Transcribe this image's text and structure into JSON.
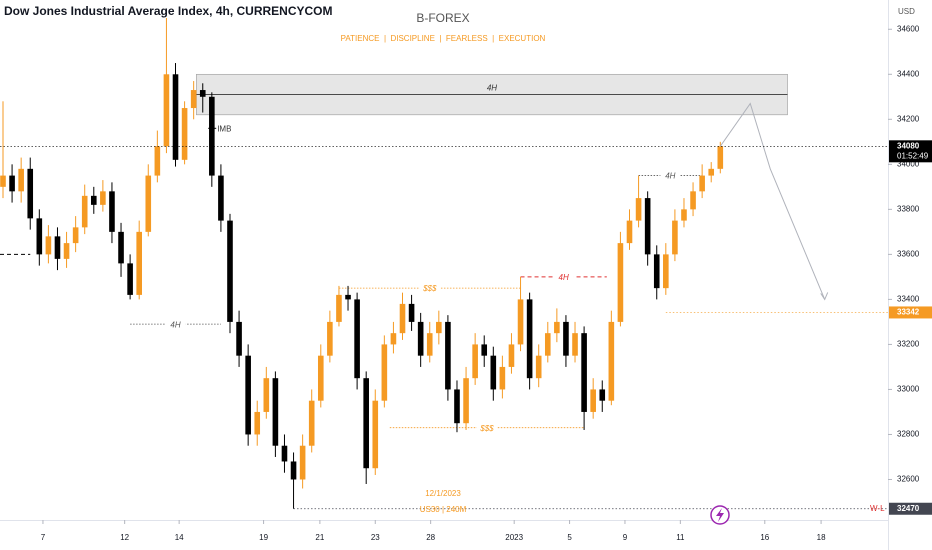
{
  "chart_data": {
    "type": "candlestick",
    "title": "Dow Jones Industrial Average Index, 4h, CURRENCYCOM",
    "brand": "B-FOREX",
    "motto": "PATIENCE  |  DISCIPLINE  |  FEARLESS  |  EXECUTION",
    "currency": "USD",
    "up_color": "#f59a23",
    "down_color": "#000000",
    "xlim": [
      -0.33,
      97.47
    ],
    "ylim": [
      32420,
      34730
    ],
    "xticks": [
      {
        "value": 4.4,
        "label": "7"
      },
      {
        "value": 13.4,
        "label": "12"
      },
      {
        "value": 19.4,
        "label": "14"
      },
      {
        "value": 28.7,
        "label": "19"
      },
      {
        "value": 34.9,
        "label": "21"
      },
      {
        "value": 41,
        "label": "23"
      },
      {
        "value": 47.1,
        "label": "28"
      },
      {
        "value": 56.3,
        "label": "2023"
      },
      {
        "value": 62.4,
        "label": "5"
      },
      {
        "value": 68.5,
        "label": "9"
      },
      {
        "value": 74.6,
        "label": "11"
      },
      {
        "value": 83.9,
        "label": "16"
      },
      {
        "value": 90.1,
        "label": "18"
      }
    ],
    "yticks": [
      34600,
      34400,
      34200,
      34000,
      33800,
      33600,
      33400,
      33200,
      33000,
      32800,
      32600
    ],
    "open": [
      33900,
      33950,
      33880,
      33980,
      33760,
      33600,
      33680,
      33580,
      33650,
      33720,
      33860,
      33820,
      33880,
      33700,
      33560,
      33420,
      33700,
      33950,
      34080,
      34400,
      34020,
      34250,
      34330,
      34300,
      33950,
      33750,
      33300,
      33150,
      32800,
      32900,
      33050,
      32750,
      32680,
      32600,
      32750,
      32950,
      33150,
      33300,
      33420,
      33400,
      33050,
      32650,
      32950,
      33200,
      33250,
      33380,
      33300,
      33150,
      33250,
      33300,
      33000,
      32850,
      33050,
      33200,
      33150,
      33000,
      33100,
      33200,
      33400,
      33050,
      33150,
      33250,
      33300,
      33150,
      33250,
      32900,
      33000,
      32950,
      33300,
      33650,
      33750,
      33850,
      33600,
      33450,
      33600,
      33750,
      33800,
      33880,
      33950,
      33980
    ],
    "high": [
      34280,
      34000,
      34030,
      34030,
      33800,
      33730,
      33720,
      33700,
      33770,
      33910,
      33900,
      33930,
      33920,
      33740,
      33600,
      33750,
      34000,
      34150,
      34650,
      34450,
      34280,
      34370,
      34360,
      34320,
      34000,
      33780,
      33350,
      33200,
      32950,
      33100,
      33080,
      32800,
      32720,
      32800,
      33000,
      33200,
      33350,
      33460,
      33460,
      33430,
      33080,
      33000,
      33240,
      33300,
      33430,
      33420,
      33340,
      33300,
      33350,
      33330,
      33040,
      33100,
      33250,
      33240,
      33190,
      33150,
      33250,
      33500,
      33430,
      33200,
      33300,
      33360,
      33330,
      33300,
      33280,
      33050,
      33040,
      33350,
      33700,
      33800,
      33950,
      33880,
      33640,
      33650,
      33800,
      33850,
      33920,
      34000,
      34010,
      34100
    ],
    "low": [
      33850,
      33830,
      33830,
      33710,
      33550,
      33560,
      33530,
      33540,
      33610,
      33690,
      33780,
      33790,
      33650,
      33500,
      33400,
      33400,
      33680,
      33920,
      34050,
      33990,
      34000,
      34200,
      34230,
      33900,
      33700,
      33250,
      33100,
      32750,
      32750,
      32870,
      32700,
      32630,
      32470,
      32560,
      32720,
      32920,
      33120,
      33280,
      33350,
      33000,
      32580,
      32620,
      32920,
      33160,
      33220,
      33260,
      33100,
      33120,
      33200,
      32950,
      32810,
      32820,
      33020,
      33100,
      32950,
      32960,
      33070,
      33170,
      33000,
      33010,
      33120,
      33210,
      33100,
      33120,
      32820,
      32870,
      32900,
      32930,
      33280,
      33620,
      33720,
      33550,
      33400,
      33420,
      33570,
      33720,
      33770,
      33850,
      33920,
      33960
    ],
    "close": [
      33950,
      33880,
      33980,
      33760,
      33600,
      33680,
      33580,
      33650,
      33720,
      33860,
      33820,
      33880,
      33700,
      33560,
      33420,
      33700,
      33950,
      34080,
      34400,
      34020,
      34250,
      34330,
      34300,
      33950,
      33750,
      33300,
      33150,
      32800,
      32900,
      33050,
      32750,
      32680,
      32600,
      32750,
      32950,
      33150,
      33300,
      33420,
      33400,
      33050,
      32650,
      32950,
      33200,
      33250,
      33380,
      33300,
      33150,
      33250,
      33300,
      33000,
      32850,
      33050,
      33200,
      33150,
      33000,
      33100,
      33200,
      33400,
      33050,
      33150,
      33250,
      33300,
      33150,
      33250,
      32900,
      33000,
      32950,
      33300,
      33650,
      33750,
      33850,
      33600,
      33450,
      33600,
      33750,
      33800,
      33880,
      33950,
      33980,
      34080
    ],
    "zone": {
      "top": 34400,
      "bottom": 34220,
      "mid": 34310,
      "start": 21.3,
      "end": 86.4,
      "label": "4H"
    },
    "levels": [
      {
        "value": 33290,
        "start": 14,
        "end": 24,
        "label": "4H",
        "color": "#555555"
      },
      {
        "value": 33450,
        "start": 37,
        "end": 57,
        "label": "$$$",
        "color": "#f59a23"
      },
      {
        "value": 32830,
        "start": 42.6,
        "end": 64,
        "label": "$$$",
        "color": "#f59a23"
      },
      {
        "value": 33500,
        "start": 57,
        "end": 66.5,
        "label": "4H",
        "color": "#e03030"
      },
      {
        "value": 33950,
        "start": 70,
        "end": 77,
        "label": "4H",
        "color": "#555555"
      },
      {
        "value": 33600,
        "start": -0.33,
        "end": 3,
        "color": "#000000"
      }
    ],
    "imb": {
      "value": 34160,
      "start": 22.6,
      "label": "IMB"
    },
    "projection": {
      "x": [
        79,
        82.3,
        84.5,
        90.5
      ],
      "values": [
        34080,
        34270,
        33980,
        33400
      ]
    },
    "price_tags": [
      {
        "value": 34080,
        "color": "#000000",
        "start": -0.33
      },
      {
        "value": 33342,
        "color": "#f59a23",
        "start": 73
      },
      {
        "value": 32470,
        "color": "#434651",
        "start": 32
      }
    ],
    "countdown": "01:52:49",
    "low_label": "W-L",
    "notes": [
      "12/1/2023",
      "US30 | 240M"
    ]
  }
}
